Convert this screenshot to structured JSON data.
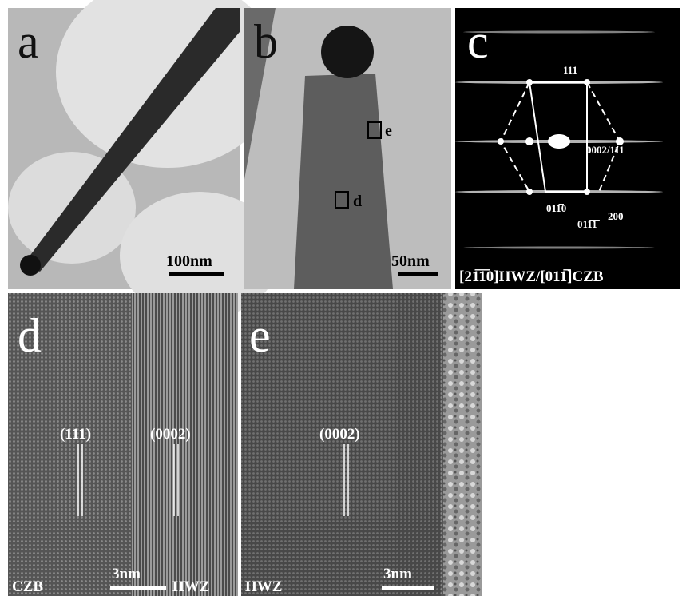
{
  "panels": [
    {
      "label": "a",
      "scale_bar": "100nm"
    },
    {
      "label": "b",
      "scale_bar": "50nm",
      "boxes": [
        "e",
        "d"
      ]
    },
    {
      "label": "c",
      "spots": [
        "1̅11",
        "0002/111",
        "011̅0",
        "011̅1̅",
        "200"
      ],
      "zone_axis": "[21̅1̅0]HWZ/[011̅]CZB"
    },
    {
      "label": "d",
      "planes": [
        "(111)",
        "(0002)"
      ],
      "scale_bar": "3nm",
      "regions": [
        "CZB",
        "HWZ"
      ]
    },
    {
      "label": "e",
      "planes": [
        "(0002)"
      ],
      "scale_bar": "3nm",
      "regions": [
        "HWZ"
      ]
    }
  ]
}
